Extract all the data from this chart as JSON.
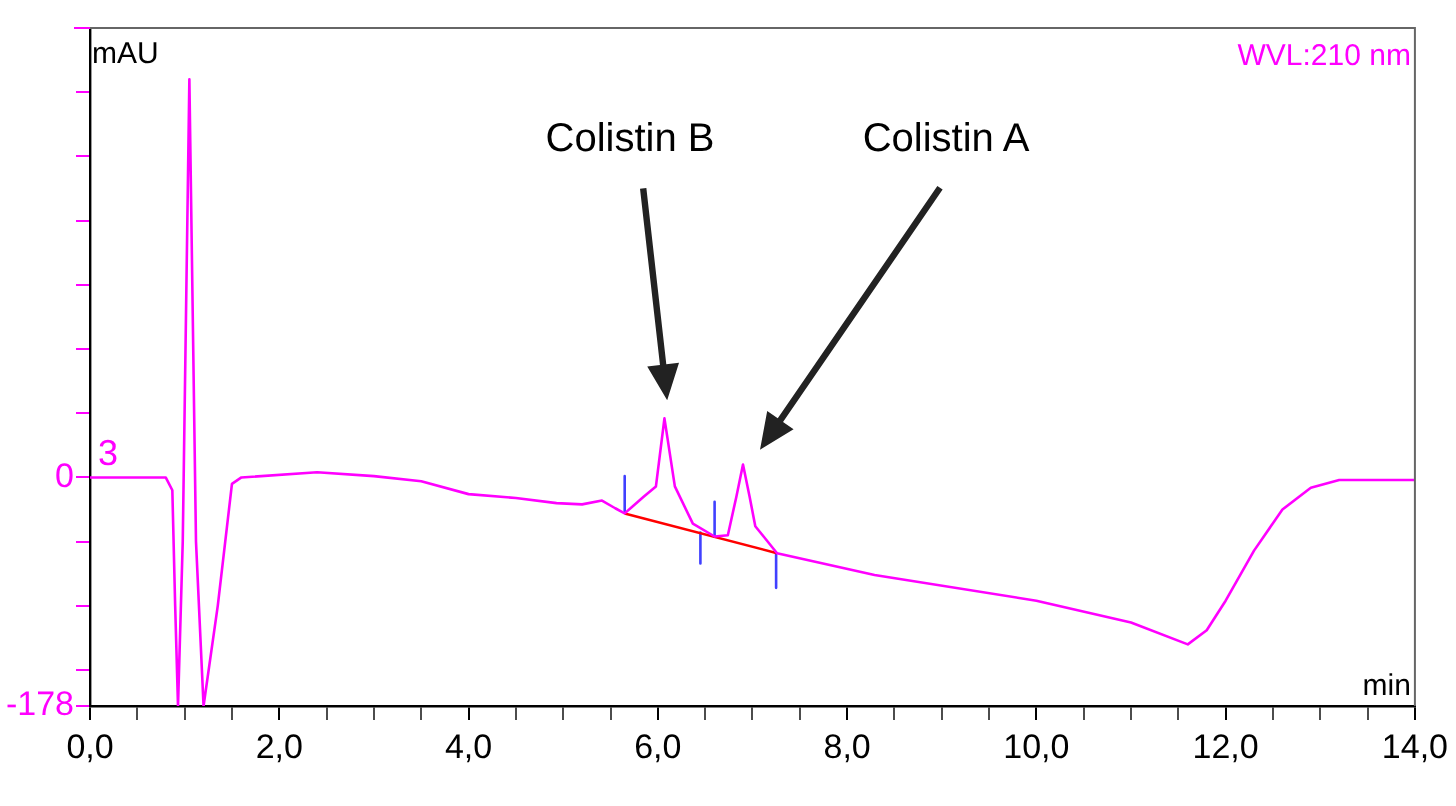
{
  "chart_data": {
    "type": "line",
    "xlabel": "min",
    "ylabel": "mAU",
    "xlim": [
      0,
      14
    ],
    "ylim": [
      -178,
      350
    ],
    "xticks": [
      {
        "value": 0,
        "label": "0,0"
      },
      {
        "value": 0.5,
        "label": null
      },
      {
        "value": 1,
        "label": null
      },
      {
        "value": 1.5,
        "label": null
      },
      {
        "value": 2,
        "label": "2,0"
      },
      {
        "value": 2.5,
        "label": null
      },
      {
        "value": 3,
        "label": null
      },
      {
        "value": 3.5,
        "label": null
      },
      {
        "value": 4,
        "label": "4,0"
      },
      {
        "value": 4.5,
        "label": null
      },
      {
        "value": 5,
        "label": null
      },
      {
        "value": 5.5,
        "label": null
      },
      {
        "value": 6,
        "label": "6,0"
      },
      {
        "value": 6.5,
        "label": null
      },
      {
        "value": 7,
        "label": null
      },
      {
        "value": 7.5,
        "label": null
      },
      {
        "value": 8,
        "label": "8,0"
      },
      {
        "value": 8.5,
        "label": null
      },
      {
        "value": 9,
        "label": null
      },
      {
        "value": 9.5,
        "label": null
      },
      {
        "value": 10,
        "label": "10,0"
      },
      {
        "value": 10.5,
        "label": null
      },
      {
        "value": 11,
        "label": null
      },
      {
        "value": 11.5,
        "label": null
      },
      {
        "value": 12,
        "label": "12,0"
      },
      {
        "value": 12.5,
        "label": null
      },
      {
        "value": 13,
        "label": null
      },
      {
        "value": 13.5,
        "label": null
      },
      {
        "value": 14,
        "label": "14,0"
      }
    ],
    "yticks": [
      -178,
      {
        "value": -150,
        "label": null
      },
      {
        "value": -100,
        "label": null
      },
      {
        "value": -50,
        "label": null
      },
      0,
      {
        "value": 50,
        "label": null
      },
      {
        "value": 100,
        "label": null
      },
      {
        "value": 150,
        "label": null
      },
      {
        "value": 200,
        "label": null
      },
      {
        "value": 250,
        "label": null
      },
      {
        "value": 300,
        "label": null
      },
      {
        "value": 350,
        "label": null
      }
    ],
    "grid": false,
    "legend": false,
    "marker": "none",
    "line_style": "solid",
    "annotations": [
      "WVL:210 nm",
      "3",
      "Colistin B",
      "Colistin A"
    ],
    "series": [
      {
        "color": "#ff00ff",
        "x": [
          0,
          0.8,
          0.87,
          0.9,
          0.93,
          0.98,
          1.05,
          1.12,
          1.2,
          1.35,
          1.5,
          1.6,
          2.4,
          3.0,
          3.5,
          4.0,
          4.5,
          4.93,
          5.2,
          5.41,
          5.55,
          5.65,
          5.85,
          5.98,
          6.07,
          6.18,
          6.37,
          6.6,
          6.74,
          6.83,
          6.9,
          6.97,
          7.03,
          7.26,
          8.29,
          10.0,
          11.0,
          11.6,
          11.8,
          12.0,
          12.3,
          12.6,
          12.9,
          13.2,
          14.0
        ],
        "values": [
          0,
          0,
          -10,
          -100,
          -178,
          -50,
          310,
          -50,
          -178,
          -100,
          -5,
          0,
          4,
          1,
          -3,
          -13,
          -16,
          -20,
          -21,
          -18,
          -24,
          -28,
          -15,
          -7,
          46,
          -7,
          -36,
          -46,
          -45,
          -15,
          10,
          -15,
          -38,
          -59,
          -76,
          -96,
          -113,
          -130,
          -119,
          -96,
          -57,
          -25,
          -8,
          -2,
          -2
        ]
      },
      {
        "color": "#ff0000",
        "x": [
          5.65,
          7.26
        ],
        "values": [
          -28,
          -59
        ]
      },
      {
        "color": "#4040ff",
        "x": [
          5.65,
          5.65
        ],
        "values": [
          1,
          -27
        ]
      },
      {
        "color": "#4040ff",
        "x": [
          6.45,
          6.45
        ],
        "values": [
          -43,
          -67
        ]
      },
      {
        "color": "#4040ff",
        "x": [
          6.6,
          6.6
        ],
        "values": [
          -19,
          -46
        ]
      },
      {
        "color": "#4040ff",
        "x": [
          7.25,
          7.25
        ],
        "values": [
          -59,
          -86
        ]
      }
    ]
  }
}
